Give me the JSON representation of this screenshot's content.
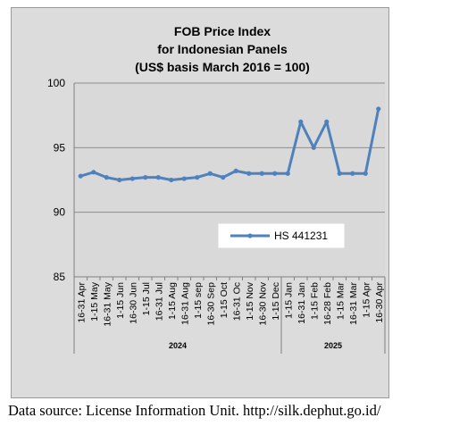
{
  "chart_data": {
    "type": "line",
    "title": [
      "FOB Price Index",
      "for Indonesian Panels",
      "(US$ basis March 2016 = 100)"
    ],
    "xlabel": "",
    "ylabel": "",
    "ylim": [
      85,
      100
    ],
    "yticks": [
      85,
      90,
      95,
      100
    ],
    "grid": true,
    "legend_position": "center-right",
    "categories": [
      "16-31 Apr",
      "1-15 May",
      "16-31 May",
      "1-15 Jun",
      "16-30 Jun",
      "1-15 Jul",
      "16-31 Jul",
      "1-15 Aug",
      "16-31 Aug",
      "1-15 sep",
      "16-30 Sep",
      "1-15 Oct",
      "16-31 Oc",
      "1-15 Nov",
      "16-30 Nov",
      "1-15 Dec",
      "1-15 Jan",
      "16-31 Jan",
      "1-15 Feb",
      "16-28 Feb",
      "1-15 Mar",
      "16-31 Mar",
      "1-15 Apr",
      "16-30 Apr"
    ],
    "year_groups": [
      {
        "label": "2024",
        "start": 0,
        "end": 15
      },
      {
        "label": "2025",
        "start": 16,
        "end": 23
      }
    ],
    "series": [
      {
        "name": "HS 441231",
        "color": "#4f81bd",
        "values": [
          92.8,
          93.1,
          92.7,
          92.5,
          92.6,
          92.7,
          92.7,
          92.5,
          92.6,
          92.7,
          93.0,
          92.7,
          93.2,
          93.0,
          93.0,
          93.0,
          93.0,
          97.0,
          95.0,
          97.0,
          93.0,
          93.0,
          93.0,
          98.0
        ]
      }
    ]
  },
  "source_note": "Data source: License Information Unit. http://silk.dephut.go.id/",
  "colors": {
    "plot_background": "#d9d9d9",
    "frame_background": "#dcdcdc",
    "gridline": "#8c8c8c",
    "line": "#4f81bd"
  }
}
